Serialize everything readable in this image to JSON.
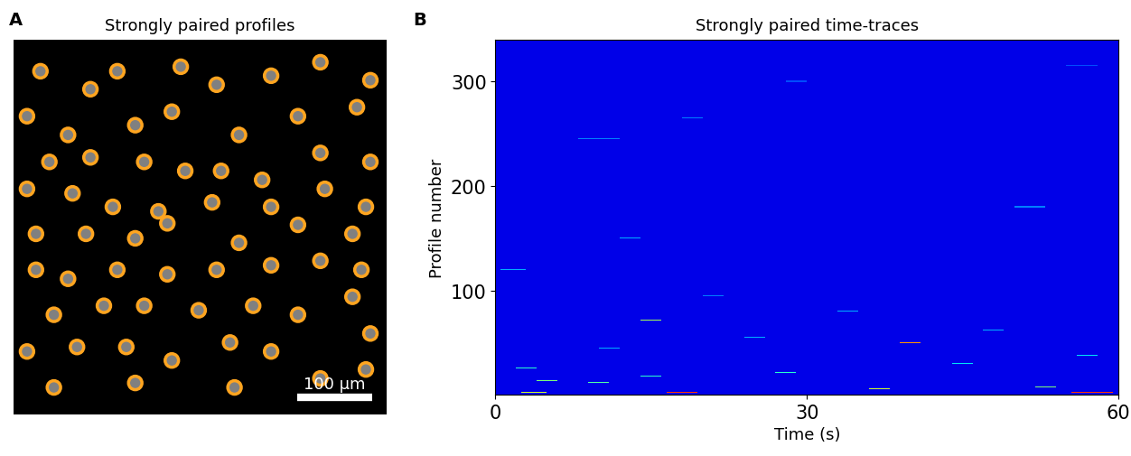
{
  "chart_data": [
    {
      "type": "image",
      "panel": "A",
      "title": "Strongly paired profiles",
      "xlim": [
        0,
        500
      ],
      "ylim": [
        500,
        0
      ],
      "tick_labels": false,
      "color": "#ffa520",
      "profile_radius": 9,
      "scale_bar": {
        "length": 100,
        "label": "100 μm"
      },
      "profiles": [
        [
          36,
          42
        ],
        [
          103,
          66
        ],
        [
          139,
          42
        ],
        [
          224,
          36
        ],
        [
          272,
          60
        ],
        [
          345,
          48
        ],
        [
          411,
          30
        ],
        [
          478,
          54
        ],
        [
          18,
          102
        ],
        [
          73,
          127
        ],
        [
          163,
          114
        ],
        [
          212,
          96
        ],
        [
          302,
          127
        ],
        [
          381,
          102
        ],
        [
          460,
          90
        ],
        [
          48,
          163
        ],
        [
          103,
          157
        ],
        [
          175,
          163
        ],
        [
          230,
          175
        ],
        [
          278,
          175
        ],
        [
          333,
          187
        ],
        [
          411,
          151
        ],
        [
          478,
          163
        ],
        [
          18,
          199
        ],
        [
          79,
          205
        ],
        [
          133,
          223
        ],
        [
          194,
          229
        ],
        [
          266,
          217
        ],
        [
          345,
          223
        ],
        [
          417,
          199
        ],
        [
          472,
          223
        ],
        [
          30,
          259
        ],
        [
          97,
          259
        ],
        [
          163,
          265
        ],
        [
          206,
          245
        ],
        [
          302,
          271
        ],
        [
          381,
          247
        ],
        [
          454,
          259
        ],
        [
          30,
          307
        ],
        [
          73,
          319
        ],
        [
          139,
          307
        ],
        [
          206,
          313
        ],
        [
          272,
          307
        ],
        [
          345,
          301
        ],
        [
          411,
          295
        ],
        [
          466,
          307
        ],
        [
          54,
          367
        ],
        [
          121,
          355
        ],
        [
          175,
          355
        ],
        [
          248,
          361
        ],
        [
          321,
          355
        ],
        [
          381,
          367
        ],
        [
          454,
          343
        ],
        [
          478,
          392
        ],
        [
          18,
          416
        ],
        [
          85,
          410
        ],
        [
          151,
          410
        ],
        [
          212,
          428
        ],
        [
          290,
          404
        ],
        [
          345,
          416
        ],
        [
          411,
          452
        ],
        [
          472,
          440
        ],
        [
          163,
          458
        ],
        [
          296,
          464
        ],
        [
          54,
          464
        ]
      ]
    },
    {
      "type": "heatmap",
      "panel": "B",
      "title": "Strongly paired time-traces",
      "x_label": "Time (s)",
      "y_label": "Profile number",
      "xlim": [
        0,
        60
      ],
      "ylim": [
        0,
        340
      ],
      "xticks": [
        0,
        30,
        60
      ],
      "yticks": [
        100,
        200,
        300
      ],
      "color_range": [
        0,
        1
      ],
      "baseline": 0.09,
      "events": [
        {
          "profile": 3,
          "start": 16.5,
          "end": 19.5,
          "value": 0.85
        },
        {
          "profile": 3,
          "start": 55.5,
          "end": 59.5,
          "value": 0.85
        },
        {
          "profile": 3,
          "start": 2.5,
          "end": 5,
          "value": 0.6
        },
        {
          "profile": 6,
          "start": 36,
          "end": 38,
          "value": 0.6
        },
        {
          "profile": 8,
          "start": 52,
          "end": 54,
          "value": 0.5
        },
        {
          "profile": 12,
          "start": 9,
          "end": 11,
          "value": 0.45
        },
        {
          "profile": 14,
          "start": 4,
          "end": 6,
          "value": 0.5
        },
        {
          "profile": 18,
          "start": 14,
          "end": 16,
          "value": 0.4
        },
        {
          "profile": 22,
          "start": 27,
          "end": 29,
          "value": 0.4
        },
        {
          "profile": 26,
          "start": 2,
          "end": 4,
          "value": 0.4
        },
        {
          "profile": 30,
          "start": 44,
          "end": 46,
          "value": 0.35
        },
        {
          "profile": 38,
          "start": 56,
          "end": 58,
          "value": 0.35
        },
        {
          "profile": 45,
          "start": 10,
          "end": 12,
          "value": 0.3
        },
        {
          "profile": 50,
          "start": 39,
          "end": 41,
          "value": 0.75
        },
        {
          "profile": 55,
          "start": 24,
          "end": 26,
          "value": 0.3
        },
        {
          "profile": 62,
          "start": 47,
          "end": 49,
          "value": 0.3
        },
        {
          "profile": 72,
          "start": 14,
          "end": 16,
          "value": 0.55
        },
        {
          "profile": 80,
          "start": 33,
          "end": 35,
          "value": 0.3
        },
        {
          "profile": 95,
          "start": 20,
          "end": 22,
          "value": 0.25
        },
        {
          "profile": 120,
          "start": 0.5,
          "end": 3,
          "value": 0.3
        },
        {
          "profile": 150,
          "start": 12,
          "end": 14,
          "value": 0.3
        },
        {
          "profile": 180,
          "start": 50,
          "end": 53,
          "value": 0.25
        },
        {
          "profile": 245,
          "start": 8,
          "end": 12,
          "value": 0.25
        },
        {
          "profile": 265,
          "start": 18,
          "end": 20,
          "value": 0.25
        },
        {
          "profile": 300,
          "start": 28,
          "end": 30,
          "value": 0.2
        },
        {
          "profile": 315,
          "start": 55,
          "end": 58,
          "value": 0.2
        }
      ]
    }
  ]
}
